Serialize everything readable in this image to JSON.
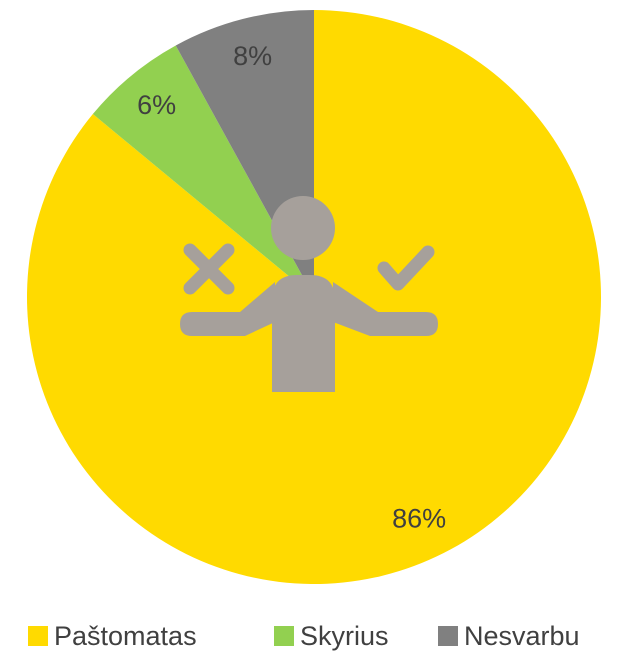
{
  "chart_data": {
    "type": "pie",
    "categories": [
      "Paštomatas",
      "Skyrius",
      "Nesvarbu"
    ],
    "values": [
      86,
      6,
      8
    ],
    "value_labels": [
      "86%",
      "6%",
      "8%"
    ],
    "colors": [
      "#FFDA00",
      "#92D050",
      "#808080"
    ]
  }
}
